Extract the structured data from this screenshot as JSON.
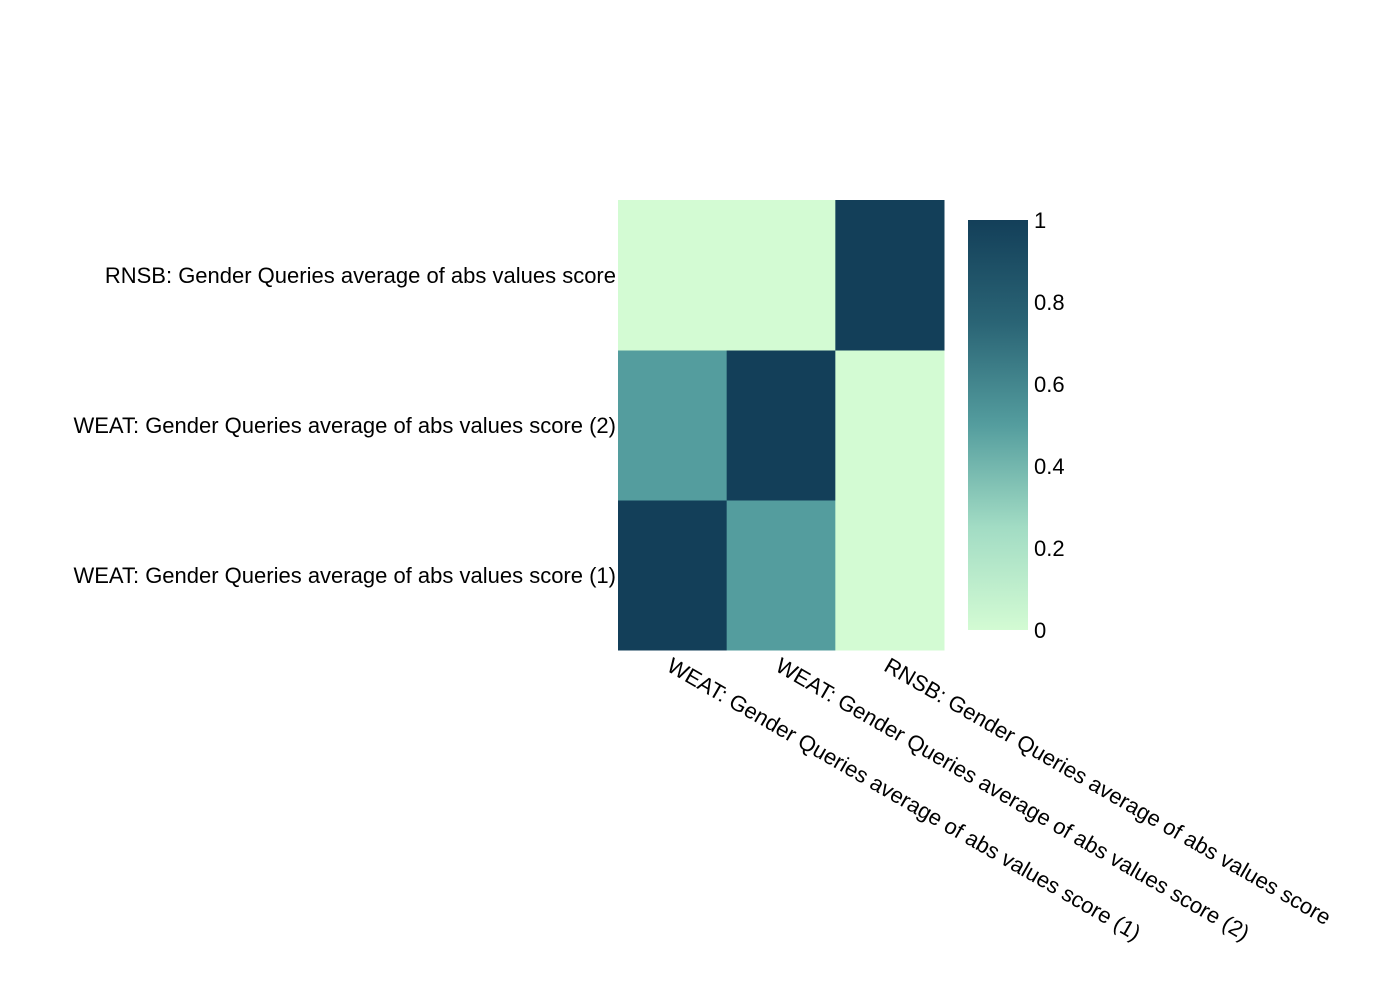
{
  "chart_data": {
    "type": "heatmap",
    "x_categories": [
      "WEAT: Gender Queries average of abs values score (1)",
      "WEAT: Gender Queries average of abs values score (2)",
      "RNSB: Gender Queries average of abs values score"
    ],
    "y_categories": [
      "WEAT: Gender Queries average of abs values score (1)",
      "WEAT: Gender Queries average of abs values score (2)",
      "RNSB: Gender Queries average of abs values score"
    ],
    "values": [
      [
        1,
        0.5,
        0
      ],
      [
        0.5,
        1,
        0
      ],
      [
        0,
        0,
        1
      ]
    ],
    "zlim": [
      0,
      1
    ],
    "colorbar": {
      "ticks": [
        0,
        0.2,
        0.4,
        0.6,
        0.8,
        1
      ],
      "tick_labels": [
        "0",
        "0.2",
        "0.4",
        "0.6",
        "0.8",
        "1"
      ],
      "placement": "right"
    },
    "colorscale": [
      {
        "stop": 0,
        "color": "#d3fbd3"
      },
      {
        "stop": 0.25,
        "color": "#a2dcc4"
      },
      {
        "stop": 0.5,
        "color": "#549d9e"
      },
      {
        "stop": 0.75,
        "color": "#2a6475"
      },
      {
        "stop": 1,
        "color": "#133f59"
      }
    ],
    "title": "",
    "xlabel": "",
    "ylabel": ""
  }
}
